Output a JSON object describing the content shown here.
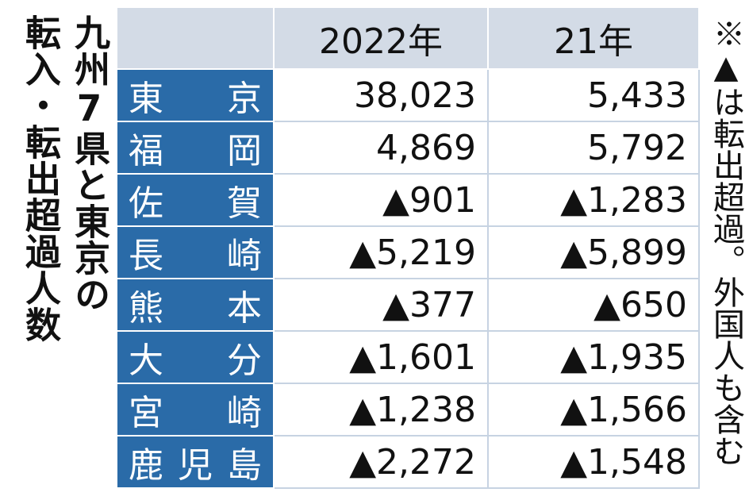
{
  "title_lines": [
    "九州7県と東京の",
    "転入・転出超過人数"
  ],
  "note": "※▲は転出超過。外国人も含む",
  "table": {
    "columns": [
      "2022年",
      "21年"
    ],
    "rows": [
      [
        "東京",
        "38,023",
        "5,433"
      ],
      [
        "福岡",
        "4,869",
        "5,792"
      ],
      [
        "佐賀",
        "▲901",
        "▲1,283"
      ],
      [
        "長崎",
        "▲5,219",
        "▲5,899"
      ],
      [
        "熊本",
        "▲377",
        "▲650"
      ],
      [
        "大分",
        "▲1,601",
        "▲1,935"
      ],
      [
        "宮崎",
        "▲1,238",
        "▲1,566"
      ],
      [
        "鹿児島",
        "▲2,272",
        "▲1,548"
      ]
    ]
  }
}
